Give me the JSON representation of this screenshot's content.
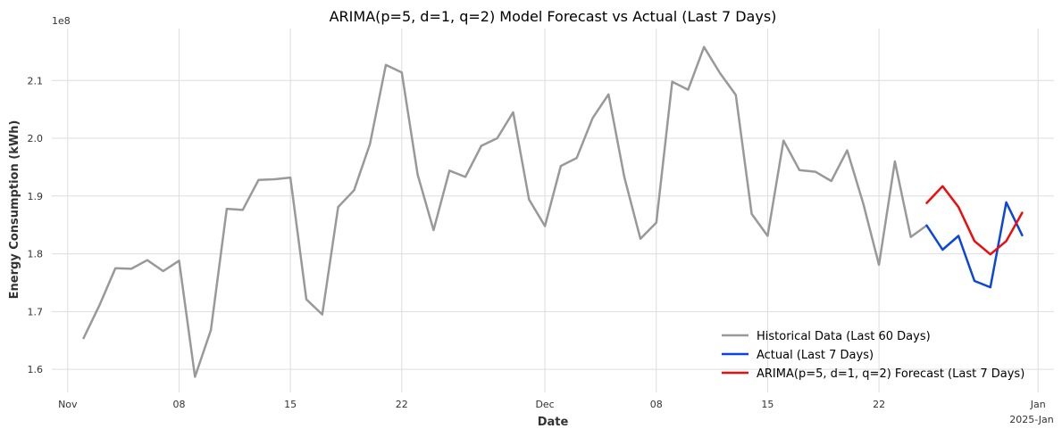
{
  "chart_data": {
    "type": "line",
    "title": "ARIMA(p=5, d=1, q=2) Model Forecast vs Actual (Last 7 Days)",
    "xlabel": "Date",
    "ylabel": "Energy Consumption (kWh)",
    "y_multiplier_label": "1e8",
    "x_offset_label": "2025-Jan",
    "ylim": [
      1.56,
      2.19
    ],
    "xlim": [
      "2024-10-31",
      "2025-01-02"
    ],
    "grid": true,
    "legend_position": "bottom-right",
    "x_ticks": [
      {
        "date": "2024-11-01",
        "label": "Nov"
      },
      {
        "date": "2024-11-08",
        "label": "08"
      },
      {
        "date": "2024-11-15",
        "label": "15"
      },
      {
        "date": "2024-11-22",
        "label": "22"
      },
      {
        "date": "2024-12-01",
        "label": "Dec"
      },
      {
        "date": "2024-12-08",
        "label": "08"
      },
      {
        "date": "2024-12-15",
        "label": "15"
      },
      {
        "date": "2024-12-22",
        "label": "22"
      },
      {
        "date": "2025-01-01",
        "label": "Jan"
      }
    ],
    "y_ticks": [
      {
        "value": 1.6,
        "label": "1.6"
      },
      {
        "value": 1.7,
        "label": "1.7"
      },
      {
        "value": 1.8,
        "label": "1.8"
      },
      {
        "value": 1.9,
        "label": "1.9"
      },
      {
        "value": 2.0,
        "label": "2.0"
      },
      {
        "value": 2.1,
        "label": "2.1"
      }
    ],
    "series": [
      {
        "name": "Historical Data (Last 60 Days)",
        "color": "#999999",
        "start_date": "2024-11-02",
        "values": [
          1.654,
          1.711,
          1.775,
          1.774,
          1.789,
          1.77,
          1.788,
          1.587,
          1.668,
          1.878,
          1.876,
          1.928,
          1.929,
          1.932,
          1.721,
          1.695,
          1.881,
          1.91,
          1.99,
          2.127,
          2.114,
          1.937,
          1.841,
          1.944,
          1.933,
          1.987,
          2.0,
          2.045,
          1.894,
          1.848,
          1.952,
          1.966,
          2.035,
          2.076,
          1.932,
          1.826,
          1.854,
          2.098,
          2.084,
          2.158,
          2.113,
          2.075,
          1.869,
          1.831,
          1.996,
          1.945,
          1.942,
          1.926,
          1.979,
          1.888,
          1.781,
          1.96,
          1.829,
          1.849
        ]
      },
      {
        "name": "Actual (Last 7 Days)",
        "color": "#0b45e0",
        "start_date": "2024-12-25",
        "values": [
          1.849,
          1.807,
          1.831,
          1.753,
          1.742,
          1.889,
          1.832
        ]
      },
      {
        "name": "ARIMA(p=5, d=1, q=2) Forecast (Last 7 Days)",
        "color": "#ef0b0b",
        "start_date": "2024-12-25",
        "values": [
          1.888,
          1.917,
          1.881,
          1.822,
          1.799,
          1.822,
          1.871
        ]
      }
    ]
  }
}
